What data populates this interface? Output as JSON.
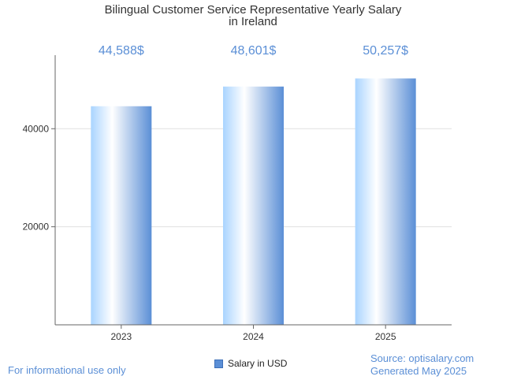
{
  "chart_data": {
    "type": "bar",
    "title_lines": [
      "Bilingual Customer Service Representative Yearly Salary",
      "in Ireland"
    ],
    "categories": [
      "2023",
      "2024",
      "2025"
    ],
    "values": [
      44588,
      48601,
      50257
    ],
    "data_labels": [
      "44,588$",
      "48,601$",
      "50,257$"
    ],
    "ylim": [
      0,
      55000
    ],
    "yticks": [
      20000,
      40000
    ],
    "ytick_labels": [
      "20000",
      "40000"
    ],
    "xlabel": "",
    "ylabel": "",
    "grid": true,
    "legend_position": "bottom-center",
    "series": [
      {
        "name": "Salary in USD",
        "values": [
          44588,
          48601,
          50257
        ]
      }
    ],
    "colors": {
      "bar_edge": "#5b8fd6",
      "bar_light": "#ffffff",
      "bar_mid": "#a9d4ff",
      "label": "#5b8fd6",
      "grid": "#e0e0e0",
      "axis": "#666666"
    }
  },
  "footer": {
    "disclaimer": "For informational use only",
    "source": "Source: optisalary.com",
    "generated": "Generated May 2025"
  },
  "legend": {
    "label": "Salary in USD"
  }
}
